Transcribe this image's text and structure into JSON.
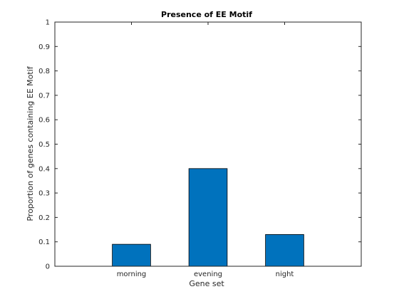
{
  "chart_data": {
    "type": "bar",
    "title": "Presence of EE Motif",
    "xlabel": "Gene set",
    "ylabel": "Proportion of genes containing EE Motif",
    "categories": [
      "morning",
      "evening",
      "night"
    ],
    "values": [
      0.09,
      0.4,
      0.13
    ],
    "ylim": [
      0,
      1
    ],
    "yticks": [
      "0",
      "0.1",
      "0.2",
      "0.3",
      "0.4",
      "0.5",
      "0.6",
      "0.7",
      "0.8",
      "0.9",
      "1"
    ],
    "grid": false,
    "bar_color": "#0072BD"
  }
}
